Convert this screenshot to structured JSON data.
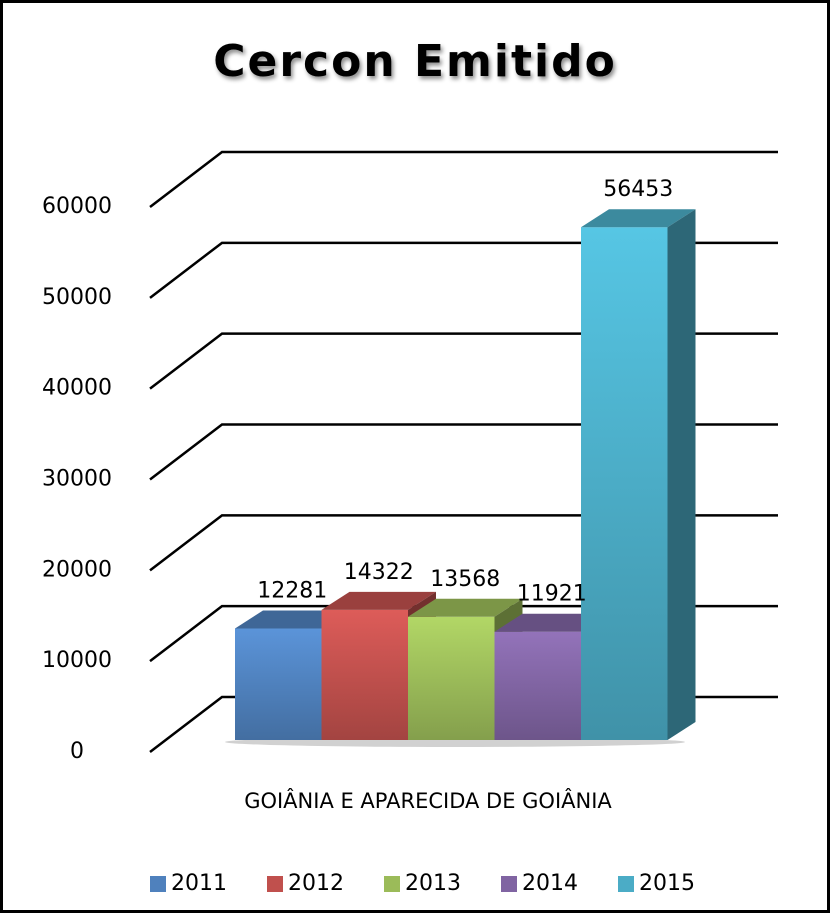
{
  "chart_data": {
    "type": "bar3d",
    "title": "Cercon Emitido",
    "categories": [
      "GOIÂNIA E APARECIDA DE GOIÂNIA"
    ],
    "series": [
      {
        "name": "2011",
        "color": "#4f81bd",
        "values": [
          12281
        ]
      },
      {
        "name": "2012",
        "color": "#c0504d",
        "values": [
          14322
        ]
      },
      {
        "name": "2013",
        "color": "#9bbb59",
        "values": [
          13568
        ]
      },
      {
        "name": "2014",
        "color": "#8064a2",
        "values": [
          11921
        ]
      },
      {
        "name": "2015",
        "color": "#4bacc6",
        "values": [
          56453
        ]
      }
    ],
    "ylim": [
      0,
      60000
    ],
    "yticks": [
      0,
      10000,
      20000,
      30000,
      40000,
      50000,
      60000
    ],
    "grid": true,
    "legend": "bottom",
    "data_labels": true
  }
}
